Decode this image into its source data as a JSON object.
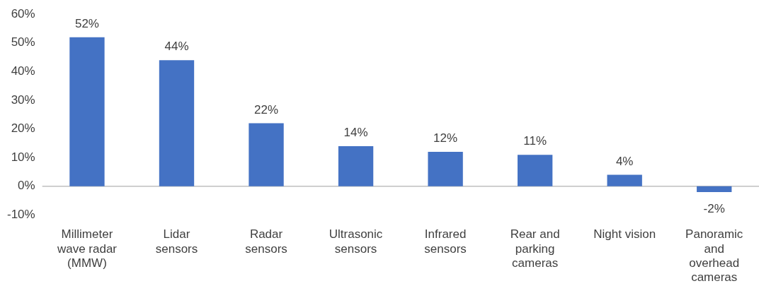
{
  "chart_data": {
    "type": "bar",
    "categories": [
      "Millimeter wave radar (MMW)",
      "Lidar sensors",
      "Radar sensors",
      "Ultrasonic sensors",
      "Infrared sensors",
      "Rear and parking cameras",
      "Night vision",
      "Panoramic and overhead cameras"
    ],
    "values": [
      52,
      44,
      22,
      14,
      12,
      11,
      4,
      -2
    ],
    "value_labels": [
      "52%",
      "44%",
      "22%",
      "14%",
      "12%",
      "11%",
      "4%",
      "-2%"
    ],
    "color": "#4472c4",
    "ylim": [
      -10,
      60
    ],
    "yticks": [
      {
        "value": -10,
        "label": "-10%"
      },
      {
        "value": 0,
        "label": "0%"
      },
      {
        "value": 10,
        "label": "10%"
      },
      {
        "value": 20,
        "label": "20%"
      },
      {
        "value": 30,
        "label": "30%"
      },
      {
        "value": 40,
        "label": "40%"
      },
      {
        "value": 50,
        "label": "50%"
      },
      {
        "value": 60,
        "label": "60%"
      }
    ],
    "grid": false,
    "ref_lines": [
      {
        "axis": "y",
        "value": 0,
        "color": "#bfbfbf"
      }
    ],
    "legend": false
  }
}
